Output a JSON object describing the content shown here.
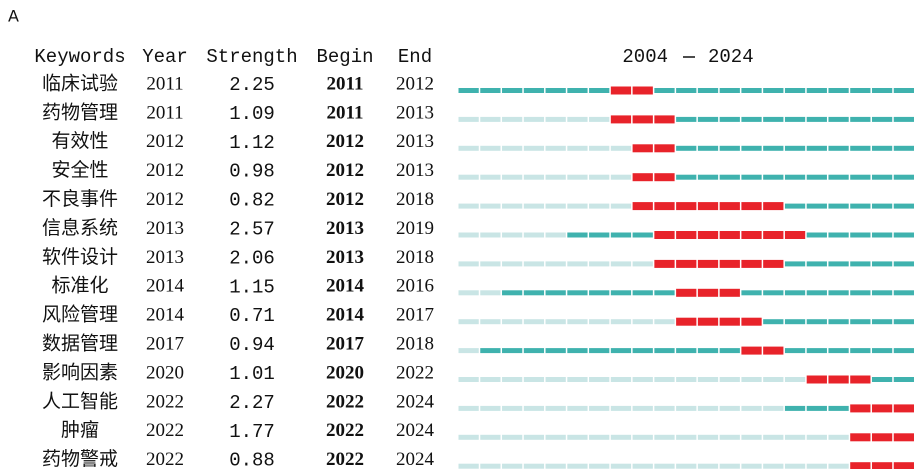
{
  "panel_label": "A",
  "header": {
    "keywords": "Keywords",
    "year": "Year",
    "strength": "Strength",
    "begin": "Begin",
    "end": "End"
  },
  "timeline": {
    "start": 2004,
    "end": 2024
  },
  "table": {
    "rows": [
      {
        "keyword": "临床试验",
        "year": 2011,
        "strength": 2.25,
        "begin": 2011,
        "end": 2012,
        "first": 2004
      },
      {
        "keyword": "药物管理",
        "year": 2011,
        "strength": 1.09,
        "begin": 2011,
        "end": 2013,
        "first": 2011
      },
      {
        "keyword": "有效性",
        "year": 2012,
        "strength": 1.12,
        "begin": 2012,
        "end": 2013,
        "first": 2012
      },
      {
        "keyword": "安全性",
        "year": 2012,
        "strength": 0.98,
        "begin": 2012,
        "end": 2013,
        "first": 2012
      },
      {
        "keyword": "不良事件",
        "year": 2012,
        "strength": 0.82,
        "begin": 2012,
        "end": 2018,
        "first": 2012
      },
      {
        "keyword": "信息系统",
        "year": 2013,
        "strength": 2.57,
        "begin": 2013,
        "end": 2019,
        "first": 2009
      },
      {
        "keyword": "软件设计",
        "year": 2013,
        "strength": 2.06,
        "begin": 2013,
        "end": 2018,
        "first": 2013
      },
      {
        "keyword": "标准化",
        "year": 2014,
        "strength": 1.15,
        "begin": 2014,
        "end": 2016,
        "first": 2006
      },
      {
        "keyword": "风险管理",
        "year": 2014,
        "strength": 0.71,
        "begin": 2014,
        "end": 2017,
        "first": 2014
      },
      {
        "keyword": "数据管理",
        "year": 2017,
        "strength": 0.94,
        "begin": 2017,
        "end": 2018,
        "first": 2005
      },
      {
        "keyword": "影响因素",
        "year": 2020,
        "strength": 1.01,
        "begin": 2020,
        "end": 2022,
        "first": 2020
      },
      {
        "keyword": "人工智能",
        "year": 2022,
        "strength": 2.27,
        "begin": 2022,
        "end": 2024,
        "first": 2019
      },
      {
        "keyword": "肿瘤",
        "year": 2022,
        "strength": 1.77,
        "begin": 2022,
        "end": 2024,
        "first": 2022
      },
      {
        "keyword": "药物警戒",
        "year": 2022,
        "strength": 0.88,
        "begin": 2022,
        "end": 2024,
        "first": 2022
      }
    ]
  }
}
